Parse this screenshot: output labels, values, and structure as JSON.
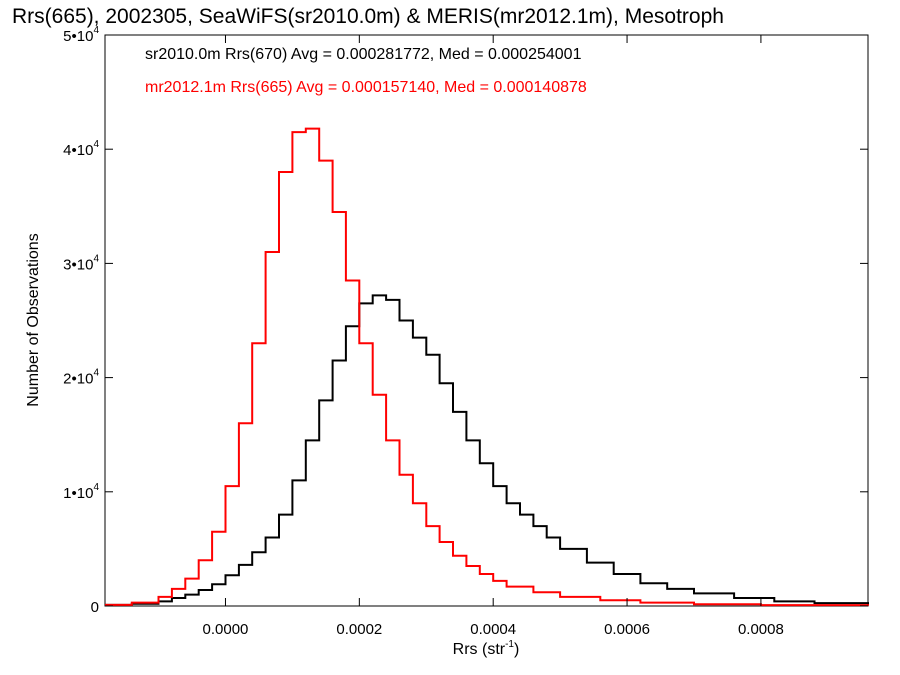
{
  "chart_data": {
    "type": "line",
    "title": "Rrs(665), 2002305, SeaWiFS(sr2010.0m) & MERIS(mr2012.1m), Mesotroph",
    "xlabel": "Rrs (str",
    "xlabel_unit_sup": "-1",
    "xlabel_close": ")",
    "ylabel": "Number of Observations",
    "xlim": [
      -0.00018,
      0.00096
    ],
    "ylim": [
      0,
      50000
    ],
    "grid": false,
    "legend_placement": "top-left",
    "x_ticks": [
      {
        "value": 0.0,
        "label": "0.0000"
      },
      {
        "value": 0.0002,
        "label": "0.0002"
      },
      {
        "value": 0.0004,
        "label": "0.0004"
      },
      {
        "value": 0.0006,
        "label": "0.0006"
      },
      {
        "value": 0.0008,
        "label": "0.0008"
      }
    ],
    "y_ticks": [
      {
        "value": 0,
        "mant": "0",
        "exp": ""
      },
      {
        "value": 10000,
        "mant": "1•10",
        "exp": "4"
      },
      {
        "value": 20000,
        "mant": "2•10",
        "exp": "4"
      },
      {
        "value": 30000,
        "mant": "3•10",
        "exp": "4"
      },
      {
        "value": 40000,
        "mant": "4•10",
        "exp": "4"
      },
      {
        "value": 50000,
        "mant": "5•10",
        "exp": "4"
      }
    ],
    "series": [
      {
        "name": "sr2010.0m Rrs(670) Avg = 0.000281772, Med = 0.000254001",
        "color": "#000000",
        "style": "step",
        "x": [
          -0.00018,
          -0.00014,
          -0.0001,
          -8e-05,
          -6e-05,
          -4e-05,
          -2e-05,
          0.0,
          2e-05,
          4e-05,
          6e-05,
          8e-05,
          0.0001,
          0.00012,
          0.00014,
          0.00016,
          0.00018,
          0.0002,
          0.00022,
          0.00024,
          0.00026,
          0.00028,
          0.0003,
          0.00032,
          0.00034,
          0.00036,
          0.00038,
          0.0004,
          0.00042,
          0.00044,
          0.00046,
          0.00048,
          0.0005,
          0.00054,
          0.00058,
          0.00062,
          0.00066,
          0.0007,
          0.00076,
          0.00082,
          0.00088,
          0.00096
        ],
        "y": [
          100,
          200,
          400,
          700,
          1000,
          1400,
          1900,
          2700,
          3600,
          4700,
          6000,
          8000,
          11000,
          14500,
          18000,
          21500,
          24500,
          26500,
          27200,
          26800,
          25000,
          23500,
          22000,
          19500,
          17000,
          14500,
          12500,
          10500,
          9000,
          8000,
          7000,
          6000,
          5000,
          3800,
          2800,
          2000,
          1500,
          1100,
          700,
          400,
          250,
          100
        ]
      },
      {
        "name": "mr2012.1m Rrs(665) Avg = 0.000157140, Med = 0.000140878",
        "color": "#ff0000",
        "style": "step",
        "x": [
          -0.00018,
          -0.00014,
          -0.0001,
          -8e-05,
          -6e-05,
          -4e-05,
          -2e-05,
          0.0,
          2e-05,
          4e-05,
          6e-05,
          8e-05,
          0.0001,
          0.00012,
          0.00014,
          0.00016,
          0.00018,
          0.0002,
          0.00022,
          0.00024,
          0.00026,
          0.00028,
          0.0003,
          0.00032,
          0.00034,
          0.00036,
          0.00038,
          0.0004,
          0.00042,
          0.00046,
          0.0005,
          0.00056,
          0.00062,
          0.0007,
          0.0008,
          0.00096
        ],
        "y": [
          100,
          300,
          800,
          1500,
          2400,
          4000,
          6500,
          10500,
          16000,
          23000,
          31000,
          38000,
          41500,
          41800,
          39000,
          34500,
          28500,
          23000,
          18500,
          14500,
          11500,
          9000,
          7000,
          5600,
          4400,
          3500,
          2800,
          2200,
          1700,
          1200,
          800,
          500,
          300,
          150,
          80,
          30
        ]
      }
    ]
  }
}
